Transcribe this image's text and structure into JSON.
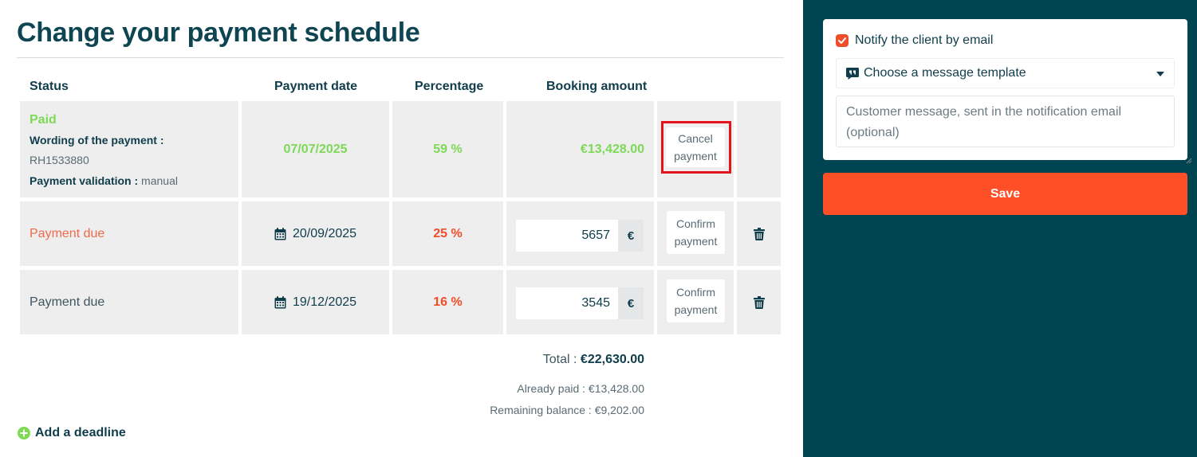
{
  "page": {
    "title": "Change your payment schedule"
  },
  "table": {
    "headers": {
      "status": "Status",
      "date": "Payment date",
      "percentage": "Percentage",
      "amount": "Booking amount"
    },
    "rows": [
      {
        "status": "Paid",
        "wording_label": "Wording of the payment :",
        "wording_value": "RH1533880",
        "validation_label": "Payment validation :",
        "validation_value": "manual",
        "date": "07/07/2025",
        "percentage": "59 %",
        "amount": "€13,428.00",
        "action": "Cancel payment"
      },
      {
        "status": "Payment due",
        "date": "20/09/2025",
        "percentage": "25 %",
        "amount_value": "5657",
        "currency": "€",
        "action": "Confirm payment"
      },
      {
        "status": "Payment due",
        "date": "19/12/2025",
        "percentage": "16 %",
        "amount_value": "3545",
        "currency": "€",
        "action": "Confirm payment"
      }
    ]
  },
  "totals": {
    "total_label": "Total :",
    "total_value": "€22,630.00",
    "already_paid": "Already paid : €13,428.00",
    "remaining": "Remaining balance : €9,202.00"
  },
  "add_deadline": "Add a deadline",
  "sidebar": {
    "notify_label": "Notify the client by email",
    "notify_checked": true,
    "template_select": "Choose a message template",
    "message_placeholder": "Customer message, sent in the notification email (optional)",
    "save_label": "Save"
  },
  "colors": {
    "sidebar_bg": "#004351",
    "accent": "#ff4f26",
    "paid_green": "#7ed957",
    "due_red": "#f04d2a"
  }
}
